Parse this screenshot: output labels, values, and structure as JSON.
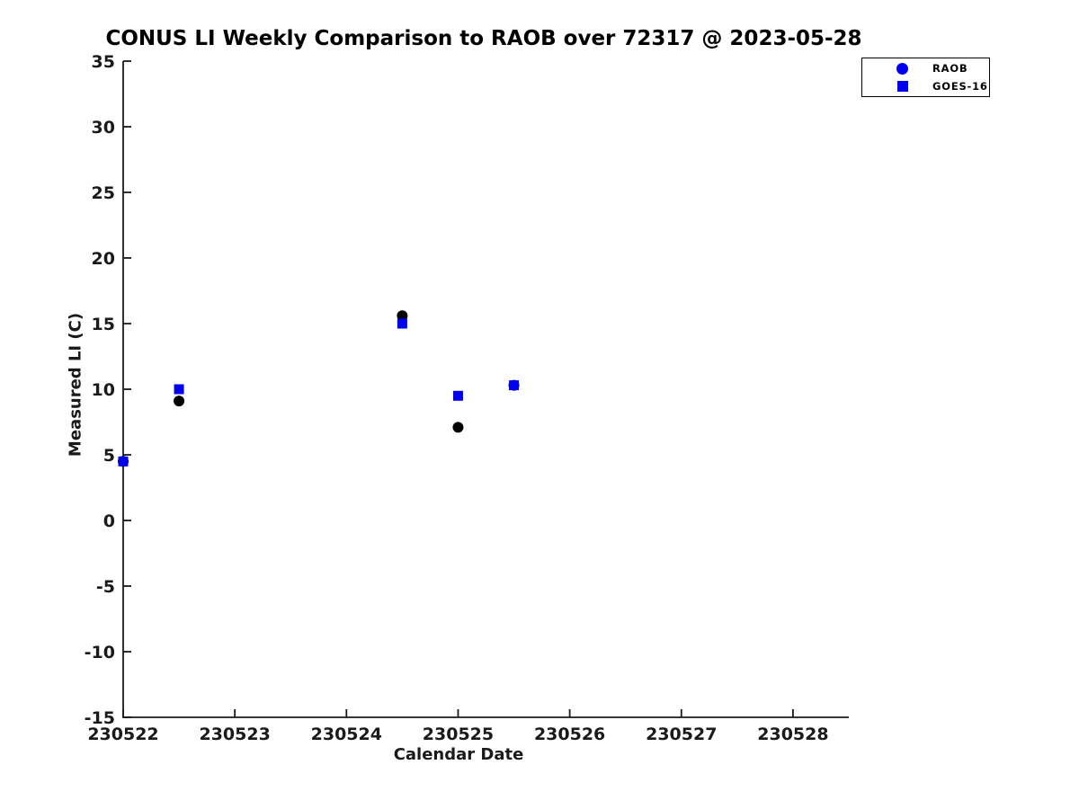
{
  "chart_data": {
    "type": "scatter",
    "title": "CONUS LI Weekly Comparison to RAOB over 72317 @ 2023-05-28",
    "xlabel": "Calendar Date",
    "ylabel": "Measured LI (C)",
    "xlim": [
      230522,
      230528.5
    ],
    "ylim": [
      -15,
      35
    ],
    "xticks": [
      230522,
      230523,
      230524,
      230525,
      230526,
      230527,
      230528
    ],
    "yticks": [
      35,
      30,
      25,
      20,
      15,
      10,
      5,
      0,
      -5,
      -10,
      -15
    ],
    "grid": false,
    "legend_position": "top-right",
    "axis_color": "#1a1a1a",
    "series": [
      {
        "name": "RAOB",
        "marker": "circle",
        "plot_color": "#000000",
        "legend_color": "#0000ee",
        "points": [
          [
            230522.0,
            4.5
          ],
          [
            230522.5,
            9.1
          ],
          [
            230524.5,
            15.6
          ],
          [
            230525.0,
            7.1
          ],
          [
            230525.5,
            10.3
          ]
        ]
      },
      {
        "name": "GOES-16",
        "marker": "square",
        "plot_color": "#0000ee",
        "legend_color": "#0000ee",
        "points": [
          [
            230522.0,
            4.5
          ],
          [
            230522.5,
            10.0
          ],
          [
            230524.5,
            15.0
          ],
          [
            230525.0,
            9.5
          ],
          [
            230525.5,
            10.3
          ]
        ]
      }
    ]
  }
}
